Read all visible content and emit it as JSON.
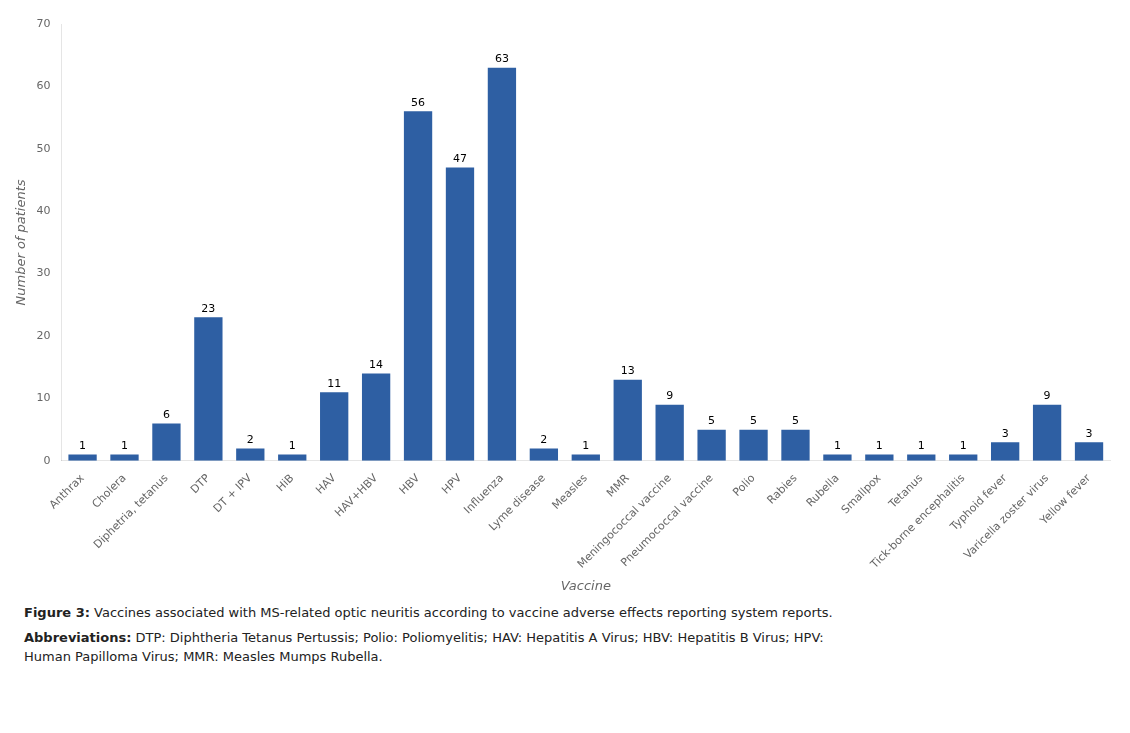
{
  "chart_data": {
    "type": "bar",
    "xlabel": "Vaccine",
    "ylabel": "Number of patients",
    "categories": [
      "Anthrax",
      "Cholera",
      "Diphetria, tetanus",
      "DTP",
      "DT + IPV",
      "HiB",
      "HAV",
      "HAV+HBV",
      "HBV",
      "HPV",
      "Influenza",
      "Lyme disease",
      "Measles",
      "MMR",
      "Meningococcal vaccine",
      "Pneumococcal vaccine",
      "Polio",
      "Rabies",
      "Rubella",
      "Smallpox",
      "Tetanus",
      "Tick-borne encephalitis",
      "Typhoid fever",
      "Varicella zoster virus",
      "Yellow fever"
    ],
    "values": [
      1,
      1,
      6,
      23,
      2,
      1,
      11,
      14,
      56,
      47,
      63,
      2,
      1,
      13,
      9,
      5,
      5,
      5,
      1,
      1,
      1,
      1,
      3,
      9,
      3
    ],
    "color": "#2E5FA3",
    "ylim": [
      0,
      70
    ],
    "yticks": [
      0,
      10,
      20,
      30,
      40,
      50,
      60,
      70
    ],
    "grid": false,
    "data_labels": true,
    "annotations": [
      {
        "label": "Figure 3:",
        "text": "Vaccines associated with MS-related optic neuritis according to vaccine adverse effects reporting system reports."
      },
      {
        "label": "Abbreviations:",
        "text": "DTP: Diphtheria Tetanus Pertussis; Polio: Poliomyelitis; HAV: Hepatitis A Virus; HBV: Hepatitis B Virus; HPV:\nHuman Papilloma Virus; MMR: Measles Mumps Rubella."
      }
    ]
  }
}
